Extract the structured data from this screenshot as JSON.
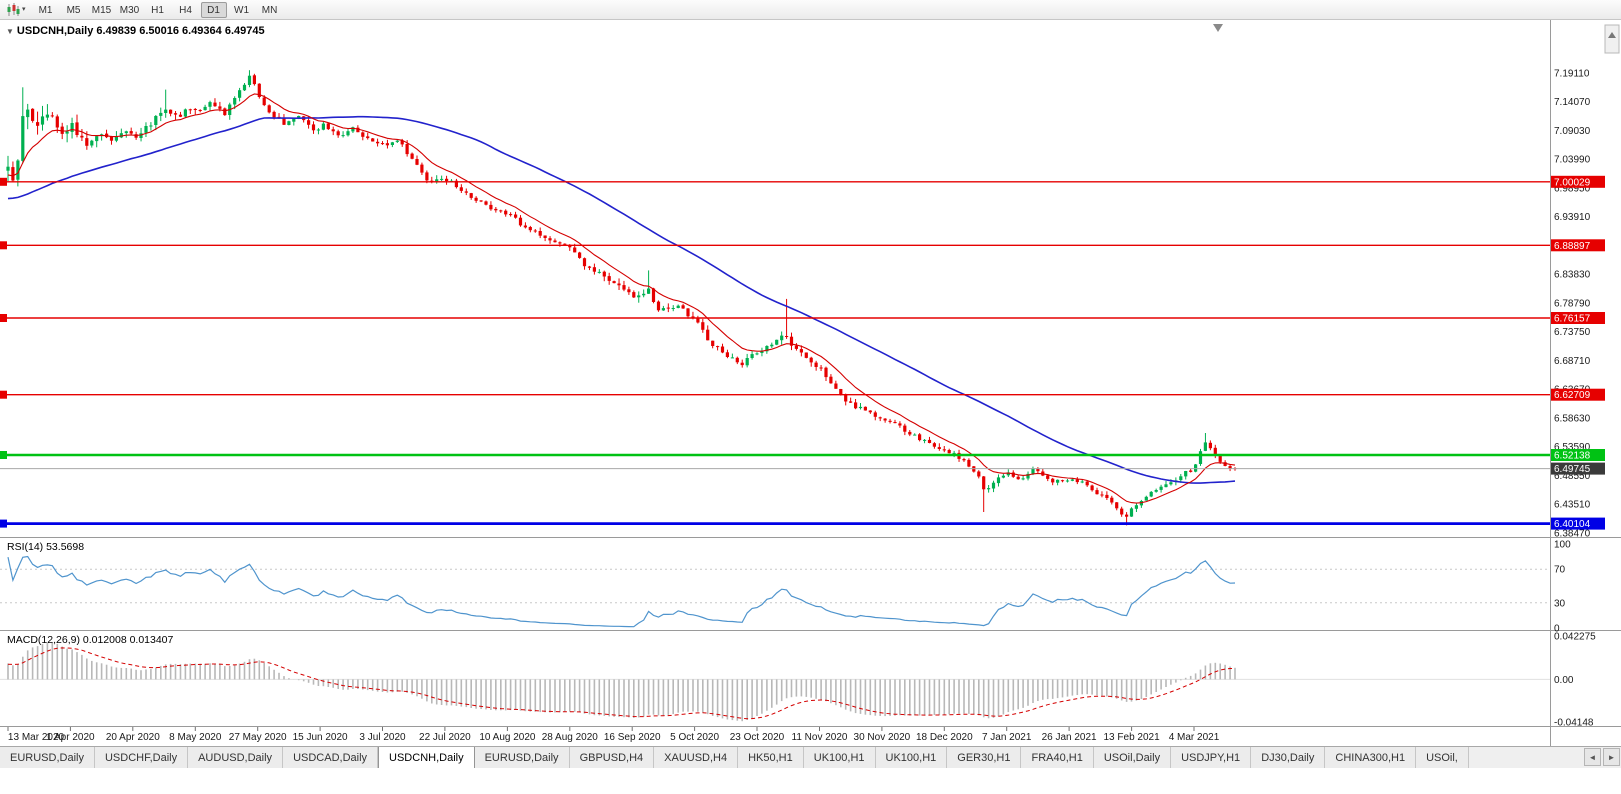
{
  "toolbar": {
    "timeframes": [
      "M1",
      "M5",
      "M15",
      "M30",
      "H1",
      "H4",
      "D1",
      "W1",
      "MN"
    ],
    "active_timeframe": "D1",
    "chart_type_icon": "candlestick-chart-icon",
    "caret": "▾"
  },
  "header": {
    "collapse_icon": "▼",
    "text": "USDCNH,Daily 6.49839 6.50016 6.49364 6.49745",
    "symbol": "USDCNH,Daily",
    "open": "6.49839",
    "high": "6.50016",
    "low": "6.49364",
    "close": "6.49745"
  },
  "chart_data": {
    "type": "candlestick",
    "symbol": "USDCNH",
    "timeframe": "Daily",
    "candle_count": 250,
    "last": {
      "open": 6.49839,
      "high": 6.50016,
      "low": 6.49364,
      "close": 6.49745
    },
    "price_axis": {
      "top": 7.284,
      "bottom": 6.3776,
      "labels": [
        "7.19110",
        "7.14070",
        "7.09030",
        "7.03990",
        "6.98950",
        "6.93910",
        "6.88870",
        "6.83830",
        "6.78790",
        "6.73750",
        "6.68710",
        "6.63670",
        "6.58630",
        "6.53590",
        "6.48550",
        "6.43510",
        "6.38470"
      ]
    },
    "date_labels": [
      "13 Mar 2020",
      "1 Apr 2020",
      "20 Apr 2020",
      "8 May 2020",
      "27 May 2020",
      "15 Jun 2020",
      "3 Jul 2020",
      "22 Jul 2020",
      "10 Aug 2020",
      "28 Aug 2020",
      "16 Sep 2020",
      "5 Oct 2020",
      "23 Oct 2020",
      "11 Nov 2020",
      "30 Nov 2020",
      "18 Dec 2020",
      "7 Jan 2021",
      "26 Jan 2021",
      "13 Feb 2021",
      "4 Mar 2021"
    ],
    "levels": [
      {
        "price": 7.00029,
        "label": "7.00029",
        "color": "#e60000",
        "width": 1.4
      },
      {
        "price": 6.88897,
        "label": "6.88897",
        "color": "#e60000",
        "width": 1.4
      },
      {
        "price": 6.76157,
        "label": "6.76157",
        "color": "#e60000",
        "width": 1.4
      },
      {
        "price": 6.62709,
        "label": "6.62709",
        "color": "#e60000",
        "width": 1.4
      },
      {
        "price": 6.52138,
        "label": "6.52138",
        "color": "#00c214",
        "width": 2.4
      },
      {
        "price": 6.40104,
        "label": "6.40104",
        "color": "#0000e6",
        "width": 2.8
      }
    ],
    "bid": {
      "price": 6.49745,
      "label": "6.49745"
    },
    "price_path": [
      [
        0.0,
        7.03
      ],
      [
        0.006,
        6.995
      ],
      [
        0.014,
        7.14
      ],
      [
        0.022,
        7.1
      ],
      [
        0.034,
        7.12
      ],
      [
        0.044,
        7.08
      ],
      [
        0.052,
        7.1
      ],
      [
        0.065,
        7.065
      ],
      [
        0.075,
        7.09
      ],
      [
        0.085,
        7.07
      ],
      [
        0.095,
        7.09
      ],
      [
        0.103,
        7.08
      ],
      [
        0.116,
        7.1
      ],
      [
        0.128,
        7.13
      ],
      [
        0.139,
        7.11
      ],
      [
        0.148,
        7.13
      ],
      [
        0.154,
        7.12
      ],
      [
        0.165,
        7.14
      ],
      [
        0.177,
        7.12
      ],
      [
        0.189,
        7.16
      ],
      [
        0.197,
        7.185
      ],
      [
        0.205,
        7.15
      ],
      [
        0.214,
        7.12
      ],
      [
        0.226,
        7.1
      ],
      [
        0.238,
        7.115
      ],
      [
        0.25,
        7.09
      ],
      [
        0.256,
        7.1
      ],
      [
        0.271,
        7.08
      ],
      [
        0.283,
        7.095
      ],
      [
        0.295,
        7.07
      ],
      [
        0.306,
        7.065
      ],
      [
        0.319,
        7.07
      ],
      [
        0.332,
        7.03
      ],
      [
        0.344,
        7.0
      ],
      [
        0.358,
        7.005
      ],
      [
        0.368,
        6.985
      ],
      [
        0.381,
        6.97
      ],
      [
        0.393,
        6.955
      ],
      [
        0.408,
        6.945
      ],
      [
        0.421,
        6.92
      ],
      [
        0.434,
        6.905
      ],
      [
        0.446,
        6.895
      ],
      [
        0.459,
        6.885
      ],
      [
        0.47,
        6.855
      ],
      [
        0.482,
        6.84
      ],
      [
        0.495,
        6.82
      ],
      [
        0.51,
        6.8
      ],
      [
        0.522,
        6.81
      ],
      [
        0.531,
        6.775
      ],
      [
        0.544,
        6.785
      ],
      [
        0.561,
        6.755
      ],
      [
        0.572,
        6.72
      ],
      [
        0.584,
        6.7
      ],
      [
        0.597,
        6.68
      ],
      [
        0.61,
        6.7
      ],
      [
        0.621,
        6.715
      ],
      [
        0.633,
        6.73
      ],
      [
        0.645,
        6.7
      ],
      [
        0.662,
        6.675
      ],
      [
        0.674,
        6.64
      ],
      [
        0.686,
        6.61
      ],
      [
        0.698,
        6.6
      ],
      [
        0.712,
        6.585
      ],
      [
        0.723,
        6.575
      ],
      [
        0.735,
        6.56
      ],
      [
        0.747,
        6.545
      ],
      [
        0.763,
        6.53
      ],
      [
        0.774,
        6.52
      ],
      [
        0.786,
        6.5
      ],
      [
        0.796,
        6.46
      ],
      [
        0.804,
        6.475
      ],
      [
        0.814,
        6.49
      ],
      [
        0.825,
        6.475
      ],
      [
        0.837,
        6.5
      ],
      [
        0.849,
        6.475
      ],
      [
        0.865,
        6.48
      ],
      [
        0.874,
        6.475
      ],
      [
        0.886,
        6.455
      ],
      [
        0.898,
        6.44
      ],
      [
        0.91,
        6.41
      ],
      [
        0.915,
        6.425
      ],
      [
        0.927,
        6.45
      ],
      [
        0.939,
        6.465
      ],
      [
        0.951,
        6.475
      ],
      [
        0.966,
        6.5
      ],
      [
        0.975,
        6.545
      ],
      [
        0.983,
        6.52
      ],
      [
        0.994,
        6.5
      ],
      [
        1.0,
        6.49745
      ]
    ],
    "volatility": [
      [
        0.0,
        0.052
      ],
      [
        0.02,
        0.042
      ],
      [
        0.06,
        0.026
      ],
      [
        0.12,
        0.02
      ],
      [
        0.16,
        0.018
      ],
      [
        0.2,
        0.016
      ],
      [
        0.25,
        0.014
      ],
      [
        0.3,
        0.013
      ],
      [
        0.34,
        0.016
      ],
      [
        0.4,
        0.013
      ],
      [
        0.46,
        0.014
      ],
      [
        0.52,
        0.02
      ],
      [
        0.56,
        0.016
      ],
      [
        0.62,
        0.014
      ],
      [
        0.64,
        0.018
      ],
      [
        0.68,
        0.014
      ],
      [
        0.74,
        0.012
      ],
      [
        0.79,
        0.016
      ],
      [
        0.82,
        0.01
      ],
      [
        0.86,
        0.01
      ],
      [
        0.9,
        0.013
      ],
      [
        0.93,
        0.011
      ],
      [
        0.965,
        0.018
      ],
      [
        1.0,
        0.008
      ]
    ],
    "spikes": [
      {
        "f": 0.014,
        "high": 7.166
      },
      {
        "f": 0.128,
        "high": 7.162
      },
      {
        "f": 0.197,
        "high": 7.196
      },
      {
        "f": 0.522,
        "high": 6.845
      },
      {
        "f": 0.633,
        "high": 6.795
      },
      {
        "f": 0.796,
        "low": 6.4215
      },
      {
        "f": 0.91,
        "low": 6.398
      },
      {
        "f": 0.975,
        "high": 6.56
      }
    ],
    "moving_averages": [
      {
        "name": "fast",
        "type": "ema",
        "period": 10,
        "color": "#d40000"
      },
      {
        "name": "slow",
        "type": "sma",
        "period": 50,
        "color": "#2222cc"
      }
    ],
    "rsi": {
      "label": "RSI(14) 53.5698",
      "period": 14,
      "value": "53.5698",
      "axis_labels": [
        "100",
        "70",
        "30",
        "0"
      ],
      "guide_levels": [
        70,
        30
      ],
      "color": "#4f94cd"
    },
    "macd": {
      "label": "MACD(12,26,9) 0.012008 0.013407",
      "fast": 12,
      "slow": 26,
      "signal": 9,
      "macd_value": "0.012008",
      "signal_value": "0.013407",
      "axis_labels": [
        "0.042275",
        "0.00",
        "-0.04148"
      ],
      "max": 0.042275,
      "min": -0.04148
    },
    "colors": {
      "bull": "#00b050",
      "bear": "#e60000",
      "ma_fast": "#d40000",
      "ma_slow": "#2222cc",
      "rsi": "#4f94cd",
      "macd_hist": "#b8b8b8",
      "macd_signal": "#d40000",
      "axis_text": "#1a1a1a",
      "bid_box": "#3a3a3a",
      "bid_line": "#a8a8a8"
    }
  },
  "tabs": {
    "items": [
      {
        "label": "EURUSD,Daily"
      },
      {
        "label": "USDCHF,Daily"
      },
      {
        "label": "AUDUSD,Daily"
      },
      {
        "label": "USDCAD,Daily"
      },
      {
        "label": "USDCNH,Daily"
      },
      {
        "label": "EURUSD,Daily"
      },
      {
        "label": "GBPUSD,H4"
      },
      {
        "label": "XAUUSD,H4"
      },
      {
        "label": "HK50,H1"
      },
      {
        "label": "UK100,H1"
      },
      {
        "label": "UK100,H1"
      },
      {
        "label": "GER30,H1"
      },
      {
        "label": "FRA40,H1"
      },
      {
        "label": "USOil,Daily"
      },
      {
        "label": "USDJPY,H1"
      },
      {
        "label": "DJ30,Daily"
      },
      {
        "label": "CHINA300,H1"
      },
      {
        "label": "USOil,"
      }
    ],
    "active_index": 4,
    "scroll_left_icon": "◄",
    "scroll_right_icon": "►"
  }
}
